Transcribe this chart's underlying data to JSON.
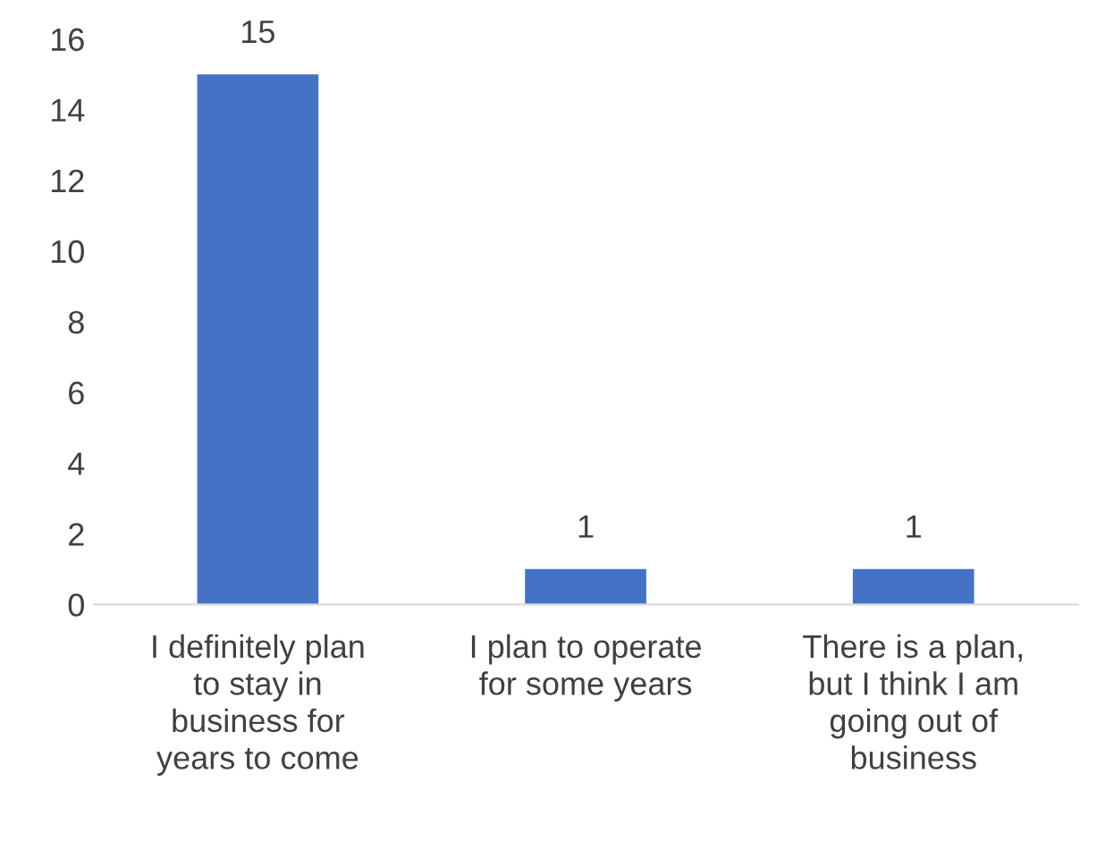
{
  "chart_data": {
    "type": "bar",
    "categories": [
      "I definitely plan\nto stay in\nbusiness for\nyears to come",
      "I plan to operate\nfor some years",
      "There is a plan,\nbut I think I am\ngoing out of\nbusiness"
    ],
    "values": [
      15,
      1,
      1
    ],
    "color": "#4472c4",
    "ylim": [
      0,
      16
    ],
    "yticks": [
      0,
      2,
      4,
      6,
      8,
      10,
      12,
      14,
      16
    ],
    "grid": false,
    "data_labels": true
  }
}
